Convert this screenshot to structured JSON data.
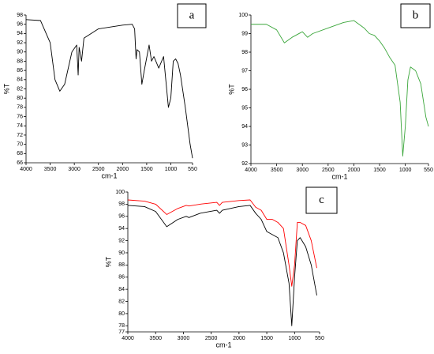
{
  "chart_data": [
    {
      "type": "line",
      "label": "a",
      "xlabel": "cm-1",
      "ylabel": "%T",
      "xlim": [
        4000,
        550
      ],
      "ylim": [
        66,
        98
      ],
      "xticks": [
        4000,
        3500,
        3000,
        2500,
        2000,
        1500,
        1000,
        550
      ],
      "yticks": [
        66,
        68,
        70,
        72,
        74,
        76,
        78,
        80,
        82,
        84,
        86,
        88,
        90,
        92,
        94,
        96,
        98
      ],
      "x": [
        4000,
        3700,
        3500,
        3400,
        3300,
        3200,
        3050,
        2950,
        2920,
        2900,
        2850,
        2800,
        2500,
        2000,
        1800,
        1750,
        1720,
        1700,
        1650,
        1600,
        1550,
        1450,
        1400,
        1350,
        1250,
        1150,
        1050,
        1000,
        950,
        900,
        850,
        800,
        700,
        600,
        550
      ],
      "series": [
        {
          "color": "#000000",
          "values": [
            97,
            96.8,
            92,
            84,
            81.5,
            83,
            90,
            91.5,
            85,
            91,
            88,
            93,
            95,
            95.8,
            96,
            95,
            88.5,
            90.5,
            90,
            83,
            86,
            91.5,
            88,
            89,
            86.5,
            89,
            78,
            80,
            88,
            88.5,
            87.5,
            85,
            78,
            70,
            67
          ]
        }
      ]
    },
    {
      "type": "line",
      "label": "b",
      "xlabel": "cm-1",
      "ylabel": "%T",
      "xlim": [
        4000,
        550
      ],
      "ylim": [
        92,
        100
      ],
      "xticks": [
        4000,
        3500,
        3000,
        2500,
        2000,
        1500,
        1000,
        550
      ],
      "yticks": [
        92,
        93,
        94,
        95,
        96,
        97,
        98,
        99,
        100
      ],
      "x": [
        4000,
        3700,
        3500,
        3350,
        3200,
        3000,
        2900,
        2800,
        2500,
        2200,
        2000,
        1800,
        1700,
        1600,
        1500,
        1400,
        1300,
        1200,
        1100,
        1050,
        1000,
        950,
        900,
        800,
        700,
        600,
        550
      ],
      "series": [
        {
          "color": "#3aa63a",
          "values": [
            99.5,
            99.5,
            99.2,
            98.5,
            98.8,
            99.1,
            98.8,
            99,
            99.3,
            99.6,
            99.7,
            99.3,
            99,
            98.9,
            98.6,
            98.2,
            97.7,
            97.3,
            95.3,
            92.4,
            94,
            96.5,
            97.2,
            97,
            96.3,
            94.5,
            94
          ]
        }
      ]
    },
    {
      "type": "line",
      "label": "c",
      "xlabel": "cm-1",
      "ylabel": "%T",
      "xlim": [
        4000,
        550
      ],
      "ylim": [
        77,
        100
      ],
      "xticks": [
        4000,
        3500,
        3000,
        2500,
        2000,
        1500,
        1000,
        550
      ],
      "yticks": [
        77,
        78,
        80,
        82,
        84,
        86,
        88,
        90,
        92,
        94,
        96,
        98,
        100
      ],
      "x": [
        4000,
        3700,
        3500,
        3300,
        3100,
        2950,
        2900,
        2700,
        2400,
        2350,
        2300,
        2000,
        1800,
        1700,
        1600,
        1500,
        1400,
        1300,
        1200,
        1100,
        1050,
        1000,
        950,
        900,
        800,
        700,
        600
      ],
      "series": [
        {
          "color": "#ff0000",
          "values": [
            98.7,
            98.5,
            98,
            96.3,
            97.3,
            97.8,
            97.7,
            98,
            98.3,
            97.8,
            98.3,
            98.6,
            98.7,
            97.5,
            97,
            95.5,
            95.5,
            95,
            94,
            88,
            84.5,
            88,
            95,
            95,
            94.5,
            92,
            87.5
          ]
        },
        {
          "color": "#000000",
          "values": [
            97.8,
            97.6,
            96.8,
            94.3,
            95.5,
            96,
            95.8,
            96.5,
            97,
            96.5,
            97,
            97.6,
            97.8,
            96.5,
            95.5,
            93.5,
            93,
            92.5,
            90,
            85,
            78,
            86,
            92,
            92.5,
            91,
            88,
            83
          ]
        }
      ]
    }
  ]
}
